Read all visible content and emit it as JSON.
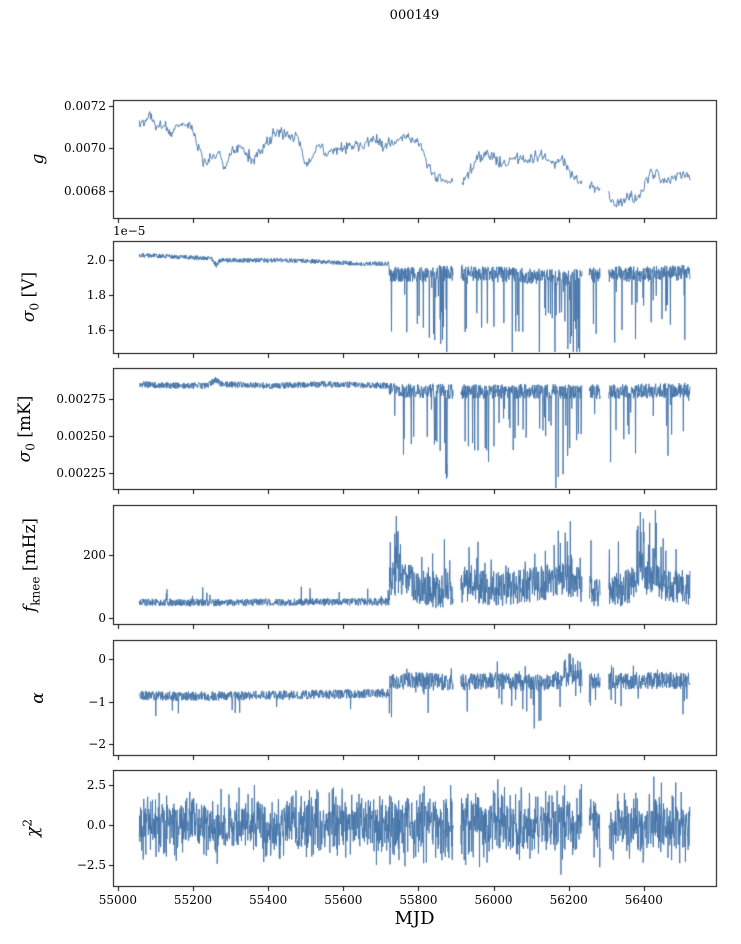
{
  "chart_data": {
    "type": "line",
    "title": "000149",
    "xlabel": "MJD",
    "xlim": [
      54987,
      56592
    ],
    "x_data_range": [
      55057,
      56523
    ],
    "xticks": [
      55000,
      55200,
      55400,
      55600,
      55800,
      56000,
      56200,
      56400
    ],
    "xtick_labels": [
      "55000",
      "55200",
      "55400",
      "55600",
      "55800",
      "56000",
      "56200",
      "56400"
    ],
    "line_color": "#4474a8",
    "gaps": [
      [
        55893,
        55913
      ],
      [
        56236,
        56254
      ],
      [
        56284,
        56306
      ]
    ],
    "panels": [
      {
        "name": "gain",
        "ylabel": {
          "sym": "g",
          "sub": "",
          "sup": "",
          "unit": ""
        },
        "ylim": [
          0.00667,
          0.00723
        ],
        "yticks": [
          0.0068,
          0.007,
          0.0072
        ],
        "ytick_labels": [
          "0.0068",
          "0.0070",
          "0.0072"
        ],
        "offset_label": "",
        "model": {
          "dt": 2,
          "noise_type": "gauss",
          "noise": [
            [
              55057,
              56524,
              1.2e-05
            ]
          ],
          "walk": {
            "step": 1.2e-05,
            "damp": 0.93
          },
          "spikes": [],
          "anchors": [
            [
              55057,
              0.00713
            ],
            [
              55075,
              0.00714
            ],
            [
              55088,
              0.00717
            ],
            [
              55100,
              0.00711
            ],
            [
              55120,
              0.00712
            ],
            [
              55140,
              0.00709
            ],
            [
              55160,
              0.0071
            ],
            [
              55180,
              0.00708
            ],
            [
              55200,
              0.00706
            ],
            [
              55228,
              0.00693
            ],
            [
              55245,
              0.00699
            ],
            [
              55265,
              0.00698
            ],
            [
              55285,
              0.00695
            ],
            [
              55305,
              0.00701
            ],
            [
              55330,
              0.00702
            ],
            [
              55355,
              0.00699
            ],
            [
              55380,
              0.00699
            ],
            [
              55405,
              0.00703
            ],
            [
              55430,
              0.00706
            ],
            [
              55455,
              0.00706
            ],
            [
              55480,
              0.00704
            ],
            [
              55505,
              0.00695
            ],
            [
              55530,
              0.007
            ],
            [
              55555,
              0.00696
            ],
            [
              55580,
              0.00698
            ],
            [
              55605,
              0.00699
            ],
            [
              55630,
              0.00701
            ],
            [
              55655,
              0.00702
            ],
            [
              55680,
              0.00703
            ],
            [
              55705,
              0.00702
            ],
            [
              55730,
              0.00703
            ],
            [
              55755,
              0.00704
            ],
            [
              55780,
              0.00703
            ],
            [
              55805,
              0.00699
            ],
            [
              55830,
              0.00691
            ],
            [
              55855,
              0.00688
            ],
            [
              55880,
              0.00684
            ],
            [
              55900,
              0.00687
            ],
            [
              55920,
              0.00685
            ],
            [
              55945,
              0.00691
            ],
            [
              55970,
              0.00695
            ],
            [
              55990,
              0.00696
            ],
            [
              56010,
              0.00693
            ],
            [
              56035,
              0.0069
            ],
            [
              56060,
              0.00693
            ],
            [
              56085,
              0.00692
            ],
            [
              56110,
              0.00694
            ],
            [
              56135,
              0.00696
            ],
            [
              56160,
              0.00695
            ],
            [
              56185,
              0.00692
            ],
            [
              56210,
              0.00687
            ],
            [
              56235,
              0.00683
            ],
            [
              56260,
              0.00681
            ],
            [
              56285,
              0.00679
            ],
            [
              56310,
              0.00677
            ],
            [
              56335,
              0.00674
            ],
            [
              56355,
              0.00676
            ],
            [
              56375,
              0.00678
            ],
            [
              56395,
              0.00684
            ],
            [
              56415,
              0.00689
            ],
            [
              56435,
              0.00691
            ],
            [
              56460,
              0.00689
            ],
            [
              56490,
              0.00688
            ],
            [
              56523,
              0.00689
            ]
          ]
        }
      },
      {
        "name": "sigma0-volts",
        "ylabel": {
          "sym": "σ",
          "sub": "0",
          "sup": "",
          "unit": " [V]"
        },
        "ylim": [
          1.47,
          2.11
        ],
        "yticks": [
          1.6,
          1.8,
          2.0
        ],
        "ytick_labels": [
          "1.6",
          "1.8",
          "2.0"
        ],
        "offset_label": "1e−5",
        "scale": "1e-5",
        "model": {
          "dt": 0.8,
          "noise_type": "uniform",
          "noise": [
            [
              55057,
              55722,
              0.013
            ],
            [
              55722,
              56524,
              0.045
            ]
          ],
          "spikes": [
            {
              "x0": 55722,
              "x1": 56524,
              "prob": 0.05,
              "amin": 0.06,
              "amax": 0.35,
              "dir": -1
            },
            {
              "x0": 55840,
              "x1": 55880,
              "prob": 0.18,
              "amin": 0.15,
              "amax": 0.5,
              "dir": -1
            },
            {
              "x0": 56040,
              "x1": 56075,
              "prob": 0.15,
              "amin": 0.15,
              "amax": 0.5,
              "dir": -1
            },
            {
              "x0": 56120,
              "x1": 56230,
              "prob": 0.12,
              "amin": 0.15,
              "amax": 0.55,
              "dir": -1
            },
            {
              "x0": 56300,
              "x1": 56330,
              "prob": 0.12,
              "amin": 0.15,
              "amax": 0.5,
              "dir": -1
            }
          ],
          "anchors": [
            [
              55057,
              2.03
            ],
            [
              55150,
              2.02
            ],
            [
              55250,
              2.01
            ],
            [
              55262,
              1.97
            ],
            [
              55272,
              2.0
            ],
            [
              55350,
              2.0
            ],
            [
              55450,
              2.0
            ],
            [
              55550,
              1.99
            ],
            [
              55650,
              1.98
            ],
            [
              55721,
              1.98
            ],
            [
              55724,
              1.92
            ],
            [
              55800,
              1.92
            ],
            [
              55900,
              1.93
            ],
            [
              56000,
              1.92
            ],
            [
              56100,
              1.91
            ],
            [
              56200,
              1.9
            ],
            [
              56300,
              1.92
            ],
            [
              56400,
              1.92
            ],
            [
              56523,
              1.93
            ]
          ]
        }
      },
      {
        "name": "sigma0-mK",
        "ylabel": {
          "sym": "σ",
          "sub": "0",
          "sup": "",
          "unit": " [mK]"
        },
        "ylim": [
          0.00214,
          0.00296
        ],
        "yticks": [
          0.00225,
          0.0025,
          0.00275
        ],
        "ytick_labels": [
          "0.00225",
          "0.00250",
          "0.00275"
        ],
        "offset_label": "",
        "model": {
          "dt": 0.8,
          "noise_type": "uniform",
          "noise": [
            [
              55057,
              55722,
              2.2e-05
            ],
            [
              55722,
              56524,
              5e-05
            ]
          ],
          "spikes": [
            {
              "x0": 55722,
              "x1": 56524,
              "prob": 0.05,
              "amin": 0.0001,
              "amax": 0.00045,
              "dir": -1
            },
            {
              "x0": 55840,
              "x1": 55880,
              "prob": 0.15,
              "amin": 0.0002,
              "amax": 0.0006,
              "dir": -1
            },
            {
              "x0": 56120,
              "x1": 56230,
              "prob": 0.12,
              "amin": 0.0002,
              "amax": 0.00065,
              "dir": -1
            },
            {
              "x0": 56300,
              "x1": 56330,
              "prob": 0.1,
              "amin": 0.0002,
              "amax": 0.0006,
              "dir": -1
            }
          ],
          "anchors": [
            [
              55057,
              0.00285
            ],
            [
              55150,
              0.00284
            ],
            [
              55240,
              0.00284
            ],
            [
              55258,
              0.00288
            ],
            [
              55275,
              0.00285
            ],
            [
              55400,
              0.00284
            ],
            [
              55550,
              0.00285
            ],
            [
              55720,
              0.00284
            ],
            [
              55724,
              0.00281
            ],
            [
              55900,
              0.0028
            ],
            [
              56100,
              0.0028
            ],
            [
              56300,
              0.0028
            ],
            [
              56523,
              0.00281
            ]
          ]
        }
      },
      {
        "name": "fknee",
        "ylabel": {
          "sym": "f",
          "sub": "knee",
          "sup": "",
          "unit": " [mHz]"
        },
        "ylim": [
          -18,
          358
        ],
        "yticks": [
          0,
          200
        ],
        "ytick_labels": [
          "0",
          "200"
        ],
        "offset_label": "",
        "model": {
          "dt": 0.8,
          "noise_type": "uniform",
          "noise": [
            [
              55057,
              55722,
              12
            ],
            [
              55722,
              56524,
              55
            ]
          ],
          "clip_lo": 1,
          "spikes": [
            {
              "x0": 55057,
              "x1": 55722,
              "prob": 0.015,
              "amin": 8,
              "amax": 45,
              "dir": 1
            },
            {
              "x0": 55723,
              "x1": 55770,
              "prob": 0.25,
              "amin": 60,
              "amax": 210,
              "dir": 1
            },
            {
              "x0": 55770,
              "x1": 56524,
              "prob": 0.05,
              "amin": 30,
              "amax": 120,
              "dir": 1
            },
            {
              "x0": 55920,
              "x1": 55960,
              "prob": 0.12,
              "amin": 40,
              "amax": 120,
              "dir": 1
            },
            {
              "x0": 56150,
              "x1": 56220,
              "prob": 0.1,
              "amin": 40,
              "amax": 130,
              "dir": 1
            },
            {
              "x0": 56380,
              "x1": 56435,
              "prob": 0.2,
              "amin": 60,
              "amax": 200,
              "dir": 1
            }
          ],
          "anchors": [
            [
              55057,
              50
            ],
            [
              55300,
              50
            ],
            [
              55500,
              52
            ],
            [
              55721,
              52
            ],
            [
              55725,
              120
            ],
            [
              55760,
              130
            ],
            [
              55800,
              100
            ],
            [
              55850,
              85
            ],
            [
              55900,
              95
            ],
            [
              55950,
              105
            ],
            [
              56000,
              90
            ],
            [
              56050,
              95
            ],
            [
              56100,
              105
            ],
            [
              56150,
              115
            ],
            [
              56200,
              120
            ],
            [
              56250,
              95
            ],
            [
              56300,
              85
            ],
            [
              56350,
              95
            ],
            [
              56400,
              130
            ],
            [
              56450,
              110
            ],
            [
              56523,
              95
            ]
          ]
        }
      },
      {
        "name": "alpha",
        "ylabel": {
          "sym": "α",
          "sub": "",
          "sup": "",
          "unit": ""
        },
        "ylim": [
          -2.25,
          0.45
        ],
        "yticks": [
          -2,
          -1,
          0
        ],
        "ytick_labels": [
          "−2",
          "−1",
          "0"
        ],
        "offset_label": "",
        "model": {
          "dt": 0.8,
          "noise_type": "uniform",
          "noise": [
            [
              55057,
              55722,
              0.11
            ],
            [
              55722,
              56524,
              0.2
            ]
          ],
          "spikes": [
            {
              "x0": 55057,
              "x1": 55722,
              "prob": 0.012,
              "amin": 0.1,
              "amax": 0.4,
              "dir": -1
            },
            {
              "x0": 55722,
              "x1": 56524,
              "prob": 0.03,
              "amin": 0.2,
              "amax": 0.9,
              "dir": -1
            },
            {
              "x0": 55722,
              "x1": 56524,
              "prob": 0.02,
              "amin": 0.1,
              "amax": 0.4,
              "dir": 1
            },
            {
              "x0": 56080,
              "x1": 56110,
              "prob": 0.12,
              "amin": 0.6,
              "amax": 1.35,
              "dir": -1
            },
            {
              "x0": 56185,
              "x1": 56235,
              "prob": 0.3,
              "amin": 0.15,
              "amax": 0.5,
              "dir": 1
            }
          ],
          "anchors": [
            [
              55057,
              -0.85
            ],
            [
              55150,
              -0.87
            ],
            [
              55300,
              -0.86
            ],
            [
              55450,
              -0.84
            ],
            [
              55600,
              -0.82
            ],
            [
              55721,
              -0.8
            ],
            [
              55724,
              -0.52
            ],
            [
              55800,
              -0.5
            ],
            [
              55900,
              -0.55
            ],
            [
              56000,
              -0.5
            ],
            [
              56080,
              -0.55
            ],
            [
              56150,
              -0.55
            ],
            [
              56200,
              -0.45
            ],
            [
              56300,
              -0.52
            ],
            [
              56400,
              -0.5
            ],
            [
              56523,
              -0.5
            ]
          ]
        }
      },
      {
        "name": "chi2",
        "ylabel": {
          "sym": "χ",
          "sub": "",
          "sup": "2",
          "unit": ""
        },
        "ylim": [
          -3.8,
          3.4
        ],
        "yticks": [
          -2.5,
          0.0,
          2.5
        ],
        "ytick_labels": [
          "−2.5",
          "0.0",
          "2.5"
        ],
        "offset_label": "",
        "model": {
          "dt": 0.8,
          "noise_type": "gauss",
          "noise": [
            [
              55057,
              55722,
              0.93
            ],
            [
              55722,
              56524,
              1.02
            ]
          ],
          "spikes": [],
          "anchors": [
            [
              55057,
              0
            ],
            [
              56523,
              0
            ]
          ]
        }
      }
    ]
  }
}
